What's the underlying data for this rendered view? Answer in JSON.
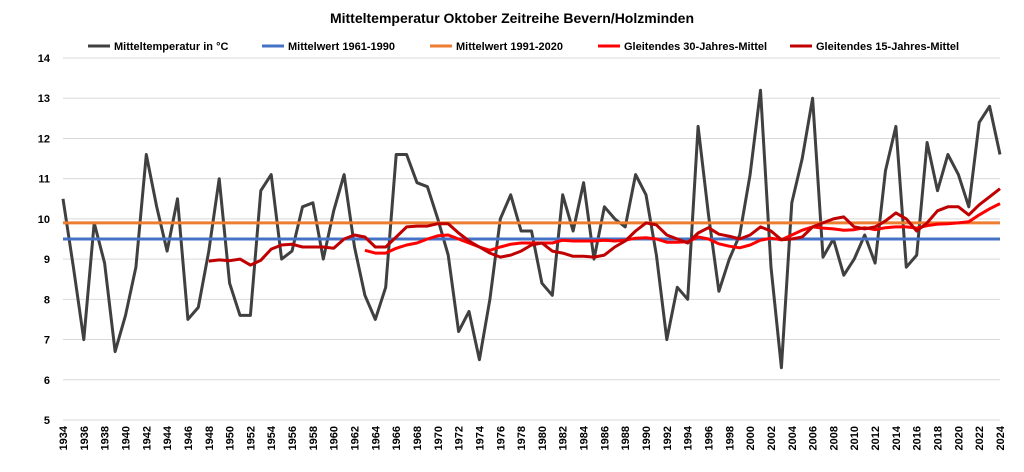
{
  "chart_data": {
    "type": "line",
    "title": "Mitteltemperatur Oktober Zeitreihe Bevern/Holzminden",
    "xlabel": "",
    "ylabel": "",
    "ylim": [
      5,
      14
    ],
    "yticks": [
      5,
      6,
      7,
      8,
      9,
      10,
      11,
      12,
      13,
      14
    ],
    "xlim": [
      1934,
      2024
    ],
    "grid": true,
    "legend_position": "top",
    "colors": {
      "temp": "#404040",
      "ref1961": "#4472C4",
      "ref1991": "#ED7D31",
      "ma30": "#FF0000",
      "ma15": "#C00000",
      "grid": "#D9D9D9"
    },
    "legend": [
      "Mitteltemperatur in °C",
      "Mittelwert 1961-1990",
      "Mittelwert 1991-2020",
      "Gleitendes 30-Jahres-Mittel",
      "Gleitendes 15-Jahres-Mittel"
    ],
    "series": [
      {
        "name": "Mitteltemperatur in °C",
        "start_year": 1934,
        "values": [
          10.5,
          8.8,
          7.0,
          9.9,
          8.9,
          6.7,
          7.6,
          8.8,
          11.6,
          10.3,
          9.2,
          10.5,
          7.5,
          7.8,
          9.2,
          11.0,
          8.4,
          7.6,
          7.6,
          10.7,
          11.1,
          9.0,
          9.2,
          10.3,
          10.4,
          9.0,
          10.2,
          11.1,
          9.3,
          8.1,
          7.5,
          8.3,
          11.6,
          11.6,
          10.9,
          10.8,
          10.0,
          9.1,
          7.2,
          7.7,
          6.5,
          8.0,
          10.0,
          10.6,
          9.7,
          9.7,
          8.4,
          8.1,
          10.6,
          9.7,
          10.9,
          9.0,
          10.3,
          10.0,
          9.8,
          11.1,
          10.6,
          9.1,
          7.0,
          8.3,
          8.0,
          12.3,
          10.1,
          8.2,
          9.0,
          9.6,
          11.1,
          13.2,
          8.8,
          6.3,
          10.4,
          11.5,
          13.0,
          9.05,
          9.5,
          8.6,
          9.0,
          9.6,
          8.9,
          11.2,
          12.3,
          8.8,
          9.1,
          11.9,
          10.7,
          11.6,
          11.1,
          10.3,
          12.4,
          12.8,
          11.6
        ]
      },
      {
        "name": "Mittelwert 1961-1990",
        "constant": 9.5
      },
      {
        "name": "Mittelwert 1991-2020",
        "constant": 9.9
      },
      {
        "name": "Gleitendes 30-Jahres-Mittel",
        "start_year": 1963,
        "values": [
          9.22,
          9.15,
          9.15,
          9.27,
          9.35,
          9.4,
          9.5,
          9.58,
          9.6,
          9.5,
          9.4,
          9.3,
          9.22,
          9.3,
          9.37,
          9.4,
          9.4,
          9.4,
          9.4,
          9.47,
          9.45,
          9.45,
          9.45,
          9.47,
          9.45,
          9.47,
          9.52,
          9.53,
          9.5,
          9.42,
          9.42,
          9.43,
          9.55,
          9.5,
          9.38,
          9.32,
          9.28,
          9.35,
          9.47,
          9.52,
          9.48,
          9.6,
          9.72,
          9.8,
          9.77,
          9.75,
          9.72,
          9.73,
          9.78,
          9.73,
          9.78,
          9.8,
          9.8,
          9.77,
          9.83,
          9.87,
          9.88,
          9.9,
          9.93,
          10.1,
          10.25,
          10.38
        ]
      },
      {
        "name": "Gleitendes 15-Jahres-Mittel",
        "start_year": 1948,
        "values": [
          8.95,
          8.98,
          8.96,
          9.0,
          8.85,
          8.97,
          9.25,
          9.35,
          9.37,
          9.3,
          9.3,
          9.3,
          9.27,
          9.5,
          9.6,
          9.55,
          9.3,
          9.3,
          9.55,
          9.8,
          9.82,
          9.82,
          9.88,
          9.88,
          9.65,
          9.45,
          9.3,
          9.15,
          9.05,
          9.1,
          9.2,
          9.35,
          9.4,
          9.2,
          9.15,
          9.07,
          9.07,
          9.05,
          9.1,
          9.3,
          9.45,
          9.7,
          9.9,
          9.85,
          9.6,
          9.5,
          9.4,
          9.65,
          9.78,
          9.62,
          9.57,
          9.5,
          9.6,
          9.8,
          9.7,
          9.48,
          9.5,
          9.55,
          9.8,
          9.9,
          10.0,
          10.05,
          9.8,
          9.75,
          9.8,
          9.95,
          10.15,
          10.0,
          9.7,
          9.9,
          10.2,
          10.3,
          10.3,
          10.1,
          10.35,
          10.55,
          10.75
        ]
      }
    ]
  }
}
